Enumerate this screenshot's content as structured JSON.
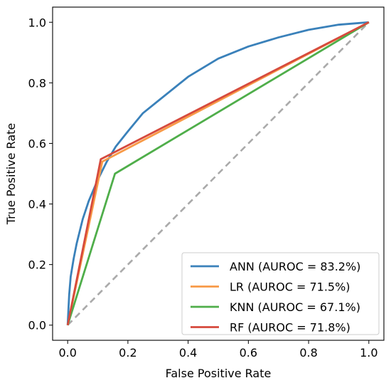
{
  "chart_data": {
    "type": "line",
    "xlabel": "False Positive Rate",
    "ylabel": "True Positive Rate",
    "xlim": [
      -0.05,
      1.05
    ],
    "ylim": [
      -0.05,
      1.05
    ],
    "x_ticks": [
      0.0,
      0.2,
      0.4,
      0.6,
      0.8,
      1.0
    ],
    "y_ticks": [
      0.0,
      0.2,
      0.4,
      0.6,
      0.8,
      1.0
    ],
    "x_tick_labels": [
      "0.0",
      "0.2",
      "0.4",
      "0.6",
      "0.8",
      "1.0"
    ],
    "y_tick_labels": [
      "0.0",
      "0.2",
      "0.4",
      "0.6",
      "0.8",
      "1.0"
    ],
    "grid": false,
    "legend_position": "lower-right",
    "diagonal": {
      "style": "dashed",
      "color": "#aaaaaa",
      "points": [
        [
          0,
          0
        ],
        [
          1,
          1
        ]
      ]
    },
    "series": [
      {
        "name": "ANN (AUROC = 83.2%)",
        "color": "#3a81ba",
        "points": [
          [
            0,
            0
          ],
          [
            0.005,
            0.1
          ],
          [
            0.01,
            0.16
          ],
          [
            0.02,
            0.22
          ],
          [
            0.03,
            0.27
          ],
          [
            0.05,
            0.35
          ],
          [
            0.07,
            0.41
          ],
          [
            0.1,
            0.48
          ],
          [
            0.13,
            0.54
          ],
          [
            0.16,
            0.59
          ],
          [
            0.2,
            0.64
          ],
          [
            0.25,
            0.7
          ],
          [
            0.3,
            0.74
          ],
          [
            0.35,
            0.78
          ],
          [
            0.4,
            0.82
          ],
          [
            0.45,
            0.85
          ],
          [
            0.5,
            0.88
          ],
          [
            0.6,
            0.92
          ],
          [
            0.7,
            0.95
          ],
          [
            0.8,
            0.975
          ],
          [
            0.9,
            0.992
          ],
          [
            1.0,
            1.0
          ]
        ]
      },
      {
        "name": "LR (AUROC = 71.5%)",
        "color": "#f89a47",
        "points": [
          [
            0,
            0
          ],
          [
            0.115,
            0.54
          ],
          [
            1.0,
            1.0
          ]
        ]
      },
      {
        "name": "KNN (AUROC = 67.1%)",
        "color": "#4fae4a",
        "points": [
          [
            0,
            0
          ],
          [
            0.157,
            0.5
          ],
          [
            1.0,
            1.0
          ]
        ]
      },
      {
        "name": "RF (AUROC = 71.8%)",
        "color": "#d64a3d",
        "points": [
          [
            0,
            0
          ],
          [
            0.11,
            0.548
          ],
          [
            1.0,
            1.0
          ]
        ]
      }
    ]
  }
}
